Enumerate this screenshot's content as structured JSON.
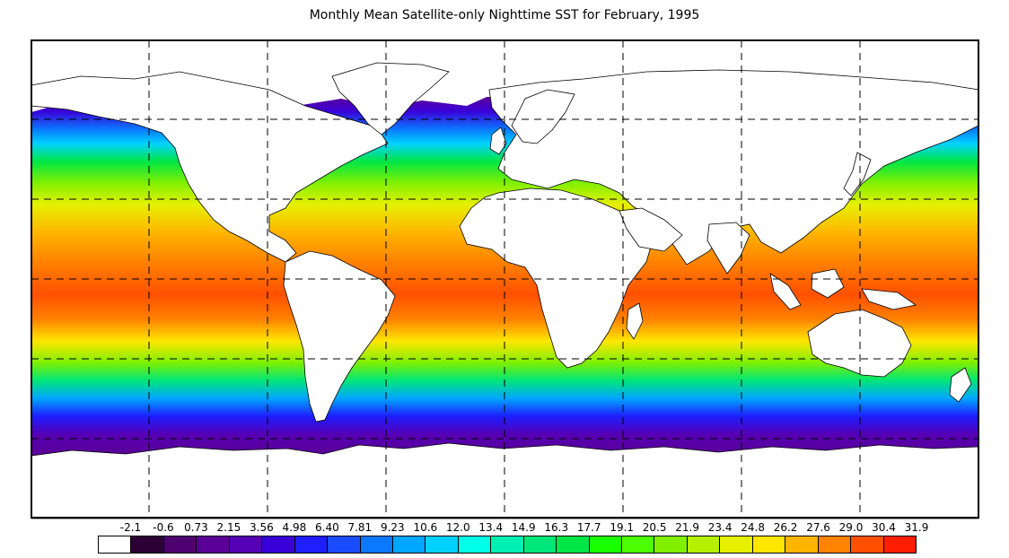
{
  "title": "Monthly Mean Satellite-only Nighttime SST for February, 1995",
  "legend": {
    "tick_labels": [
      "-2.1",
      "-0.6",
      "0.73",
      "2.15",
      "3.56",
      "4.98",
      "6.40",
      "7.81",
      "9.23",
      "10.6",
      "12.0",
      "13.4",
      "14.9",
      "16.3",
      "17.7",
      "19.1",
      "20.5",
      "21.9",
      "23.4",
      "24.8",
      "26.2",
      "27.6",
      "29.0",
      "30.4",
      "31.9"
    ],
    "colors": [
      "#ffffff",
      "#2d0035",
      "#4f0070",
      "#5a0096",
      "#5500b4",
      "#3a00d8",
      "#1e1eff",
      "#1a4cff",
      "#0a78ff",
      "#00a6ff",
      "#00d2ff",
      "#00ffe6",
      "#00f0b4",
      "#00e678",
      "#00e646",
      "#19ff00",
      "#4cff00",
      "#80f000",
      "#b4f000",
      "#e6f000",
      "#ffe600",
      "#ffb400",
      "#ff8200",
      "#ff5000",
      "#ff1e00"
    ]
  }
}
